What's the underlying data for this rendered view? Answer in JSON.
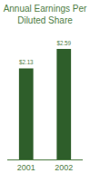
{
  "chart_data": {
    "type": "bar",
    "title": "Annual Earnings Per Diluted Share",
    "categories": [
      "2001",
      "2002"
    ],
    "values": [
      2.13,
      2.59
    ],
    "value_labels": [
      "$2.13",
      "$2.59"
    ],
    "data_labels": true,
    "color": "#2e5e2a",
    "ylim": [
      0,
      2.8
    ],
    "tick_labels": "x",
    "grid": false
  }
}
